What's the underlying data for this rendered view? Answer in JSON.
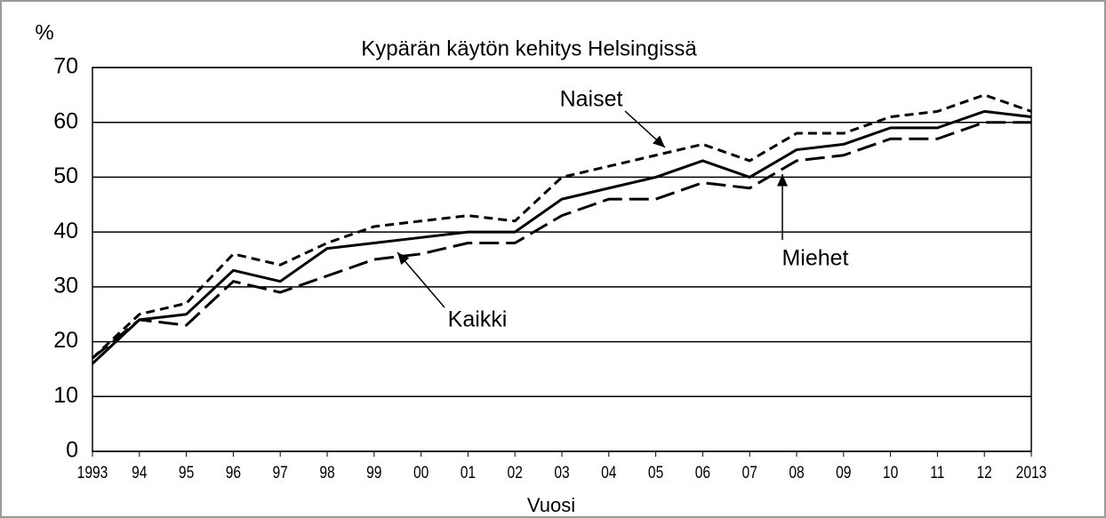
{
  "chart_data": {
    "type": "line",
    "title": "Kypärän käytön kehitys Helsingissä",
    "y_label": "%",
    "x_label": "Vuosi",
    "categories": [
      "1993",
      "94",
      "95",
      "96",
      "97",
      "98",
      "99",
      "00",
      "01",
      "02",
      "03",
      "04",
      "05",
      "06",
      "07",
      "08",
      "09",
      "10",
      "11",
      "12",
      "2013"
    ],
    "series": [
      {
        "name": "Naiset",
        "color": "#000000",
        "style": "short-dash",
        "values": [
          17,
          25,
          27,
          36,
          34,
          38,
          41,
          42,
          43,
          42,
          50,
          52,
          54,
          56,
          53,
          58,
          58,
          61,
          62,
          65,
          62
        ]
      },
      {
        "name": "Kaikki",
        "color": "#000000",
        "style": "solid",
        "values": [
          16,
          24,
          25,
          33,
          31,
          37,
          38,
          39,
          40,
          40,
          46,
          48,
          50,
          53,
          50,
          55,
          56,
          59,
          59,
          62,
          61
        ]
      },
      {
        "name": "Miehet",
        "color": "#000000",
        "style": "long-dash",
        "values": [
          17,
          24,
          23,
          31,
          29,
          32,
          35,
          36,
          38,
          38,
          43,
          46,
          46,
          49,
          48,
          53,
          54,
          57,
          57,
          60,
          60
        ]
      }
    ],
    "ylim": [
      0,
      70
    ],
    "yticks": [
      0,
      10,
      20,
      30,
      40,
      50,
      60,
      70
    ],
    "grid": true
  }
}
